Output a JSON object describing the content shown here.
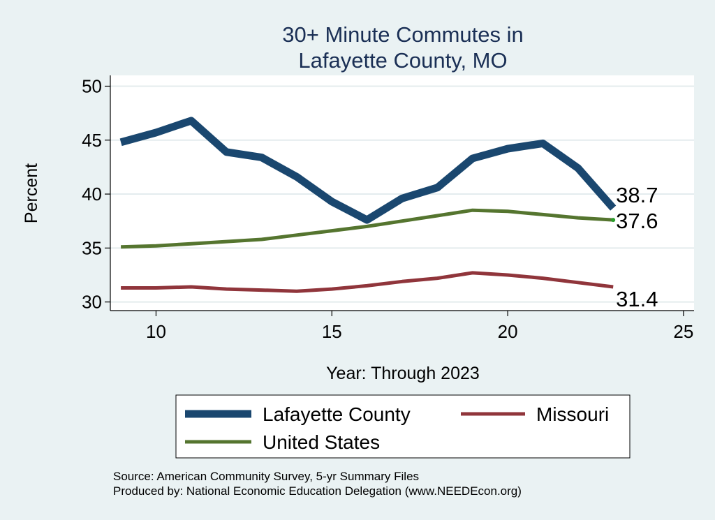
{
  "chart_data": {
    "type": "line",
    "title": [
      "30+ Minute Commutes in",
      "Lafayette County, MO"
    ],
    "xlabel": "Year: Through 2023",
    "ylabel": "Percent",
    "xlim": [
      8.7,
      25.3
    ],
    "ylim": [
      29.2,
      51.0
    ],
    "xticks": [
      10,
      15,
      20,
      25
    ],
    "yticks": [
      30,
      35,
      40,
      45,
      50
    ],
    "grid": true,
    "legend_position": "bottom",
    "series": [
      {
        "name": "Lafayette County",
        "color": "#1a476f",
        "x": [
          9,
          10,
          11,
          12,
          13,
          14,
          15,
          16,
          17,
          18,
          19,
          20,
          21,
          22,
          23
        ],
        "y": [
          44.8,
          45.7,
          46.8,
          43.9,
          43.4,
          41.6,
          39.3,
          37.6,
          39.6,
          40.6,
          43.3,
          44.2,
          44.7,
          42.4,
          38.7
        ],
        "end_label": "38.7"
      },
      {
        "name": "Missouri",
        "color": "#90353b",
        "x": [
          9,
          10,
          11,
          12,
          13,
          14,
          15,
          16,
          17,
          18,
          19,
          20,
          21,
          22,
          23
        ],
        "y": [
          31.3,
          31.3,
          31.4,
          31.2,
          31.1,
          31.0,
          31.2,
          31.5,
          31.9,
          32.2,
          32.7,
          32.5,
          32.2,
          31.8,
          31.4
        ],
        "end_label": "31.4"
      },
      {
        "name": "United States",
        "color": "#55752f",
        "x": [
          9,
          10,
          11,
          12,
          13,
          14,
          15,
          16,
          17,
          18,
          19,
          20,
          21,
          22,
          23
        ],
        "y": [
          35.1,
          35.2,
          35.4,
          35.6,
          35.8,
          36.2,
          36.6,
          37.0,
          37.5,
          38.0,
          38.5,
          38.4,
          38.1,
          37.8,
          37.6
        ],
        "end_label": "37.6"
      }
    ],
    "notes": [
      "Source: American Community Survey, 5-yr Summary Files",
      "Produced by: National Economic Education Delegation (www.NEEDEcon.org)"
    ]
  }
}
